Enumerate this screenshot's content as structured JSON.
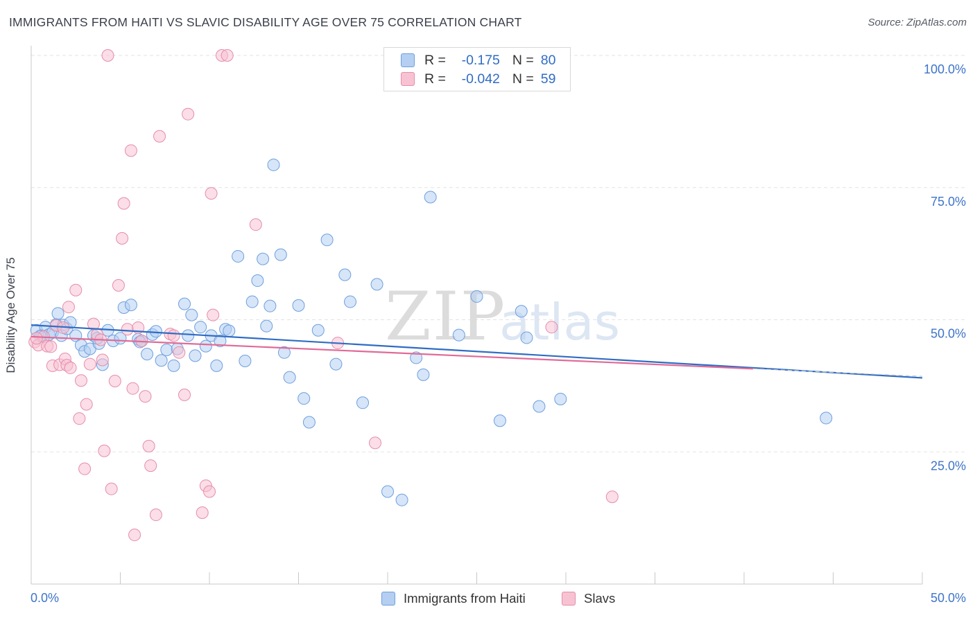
{
  "title": "IMMIGRANTS FROM HAITI VS SLAVIC DISABILITY AGE OVER 75 CORRELATION CHART",
  "source": "Source: ZipAtlas.com",
  "watermark": {
    "zip": "ZIP",
    "atlas": "atlas"
  },
  "legend": {
    "r_label": "R =",
    "n_label": "N =",
    "items": [
      {
        "r": "-0.175",
        "n": "80",
        "color": "#6d9fde"
      },
      {
        "r": "-0.042",
        "n": "59",
        "color": "#e68daa"
      }
    ]
  },
  "colors": {
    "blue_fill": "#b5cff2",
    "blue_stroke": "#6d9fde",
    "blue_line": "#2f6cc4",
    "pink_fill": "#f7c3d3",
    "pink_stroke": "#e68daa",
    "pink_line": "#e06a97",
    "tick_label": "#3d74c8",
    "grid": "#e3e3e3"
  },
  "chart_data": {
    "type": "scatter",
    "title": "IMMIGRANTS FROM HAITI VS SLAVIC DISABILITY AGE OVER 75 CORRELATION CHART",
    "xlabel": "",
    "ylabel": "Disability Age Over 75",
    "xlim": [
      0,
      50
    ],
    "ylim": [
      0,
      100
    ],
    "x_tick_labels": [
      "0.0%",
      "50.0%"
    ],
    "y_tick_labels": [
      "25.0%",
      "50.0%",
      "75.0%",
      "100.0%"
    ],
    "y_ticks": [
      25,
      50,
      75,
      100
    ],
    "grid": "horizontal dashed",
    "legend_position": "top-center",
    "series": [
      {
        "name": "Immigrants from Haiti",
        "trend": {
          "x": [
            0,
            50
          ],
          "y": [
            49.0,
            39.0
          ]
        },
        "points": [
          [
            0.3,
            48.0
          ],
          [
            0.6,
            47.0
          ],
          [
            0.8,
            48.6
          ],
          [
            1.0,
            47.2
          ],
          [
            1.2,
            47.6
          ],
          [
            1.4,
            49.1
          ],
          [
            1.5,
            51.2
          ],
          [
            1.7,
            47.0
          ],
          [
            1.8,
            49.0
          ],
          [
            2.0,
            48.3
          ],
          [
            2.2,
            49.5
          ],
          [
            2.5,
            47.0
          ],
          [
            2.8,
            45.2
          ],
          [
            3.0,
            44.0
          ],
          [
            3.3,
            44.5
          ],
          [
            3.5,
            47.0
          ],
          [
            3.8,
            45.5
          ],
          [
            4.0,
            41.5
          ],
          [
            4.3,
            48.0
          ],
          [
            4.6,
            46.0
          ],
          [
            5.0,
            46.5
          ],
          [
            5.2,
            52.3
          ],
          [
            5.6,
            52.8
          ],
          [
            6.0,
            46.3
          ],
          [
            6.2,
            46.0
          ],
          [
            6.5,
            43.5
          ],
          [
            6.8,
            47.2
          ],
          [
            7.0,
            47.8
          ],
          [
            7.3,
            42.3
          ],
          [
            7.6,
            44.3
          ],
          [
            8.0,
            41.3
          ],
          [
            8.2,
            44.5
          ],
          [
            8.6,
            53.0
          ],
          [
            8.8,
            47.0
          ],
          [
            9.0,
            50.9
          ],
          [
            9.2,
            43.2
          ],
          [
            9.5,
            48.6
          ],
          [
            9.8,
            45.0
          ],
          [
            10.1,
            47.0
          ],
          [
            10.4,
            41.3
          ],
          [
            10.6,
            46.0
          ],
          [
            10.9,
            48.2
          ],
          [
            11.1,
            47.9
          ],
          [
            11.6,
            62.0
          ],
          [
            12.0,
            42.2
          ],
          [
            12.4,
            53.4
          ],
          [
            12.7,
            57.4
          ],
          [
            13.0,
            61.5
          ],
          [
            13.2,
            48.8
          ],
          [
            13.4,
            52.6
          ],
          [
            13.6,
            79.3
          ],
          [
            14.0,
            62.3
          ],
          [
            14.2,
            43.8
          ],
          [
            14.5,
            39.1
          ],
          [
            15.0,
            52.7
          ],
          [
            15.3,
            35.1
          ],
          [
            15.6,
            30.6
          ],
          [
            16.1,
            48.0
          ],
          [
            16.6,
            65.1
          ],
          [
            17.1,
            41.6
          ],
          [
            17.6,
            58.5
          ],
          [
            17.9,
            53.4
          ],
          [
            18.6,
            34.3
          ],
          [
            19.4,
            56.7
          ],
          [
            20.0,
            17.5
          ],
          [
            20.8,
            15.9
          ],
          [
            21.6,
            42.8
          ],
          [
            22.0,
            39.6
          ],
          [
            22.4,
            73.2
          ],
          [
            24.0,
            47.1
          ],
          [
            25.0,
            54.4
          ],
          [
            26.3,
            30.9
          ],
          [
            27.5,
            51.6
          ],
          [
            27.8,
            46.6
          ],
          [
            28.5,
            33.6
          ],
          [
            29.7,
            35.0
          ],
          [
            44.6,
            31.4
          ],
          [
            0.5,
            46.9
          ],
          [
            6.1,
            45.8
          ],
          [
            3.7,
            46.5
          ]
        ]
      },
      {
        "name": "Slavs",
        "trend": {
          "x": [
            0,
            50
          ],
          "y": [
            46.8,
            39.3
          ]
        },
        "points": [
          [
            0.2,
            45.8
          ],
          [
            0.4,
            45.2
          ],
          [
            0.7,
            46.8
          ],
          [
            0.9,
            45.0
          ],
          [
            1.1,
            44.9
          ],
          [
            1.2,
            41.3
          ],
          [
            1.4,
            48.9
          ],
          [
            1.6,
            41.5
          ],
          [
            1.8,
            48.5
          ],
          [
            1.9,
            42.6
          ],
          [
            2.0,
            41.4
          ],
          [
            2.1,
            52.4
          ],
          [
            2.2,
            40.9
          ],
          [
            2.5,
            55.6
          ],
          [
            2.7,
            31.3
          ],
          [
            2.8,
            38.5
          ],
          [
            3.0,
            21.8
          ],
          [
            3.1,
            34.0
          ],
          [
            3.3,
            41.6
          ],
          [
            3.5,
            49.2
          ],
          [
            3.7,
            47.2
          ],
          [
            3.9,
            46.2
          ],
          [
            4.0,
            42.4
          ],
          [
            4.1,
            25.2
          ],
          [
            4.3,
            100.0
          ],
          [
            4.5,
            18.0
          ],
          [
            4.7,
            38.4
          ],
          [
            4.9,
            56.5
          ],
          [
            5.1,
            65.4
          ],
          [
            5.2,
            72.0
          ],
          [
            5.4,
            48.2
          ],
          [
            5.6,
            82.0
          ],
          [
            5.7,
            37.0
          ],
          [
            5.8,
            9.3
          ],
          [
            6.0,
            48.5
          ],
          [
            6.2,
            46.0
          ],
          [
            6.4,
            35.5
          ],
          [
            6.6,
            26.1
          ],
          [
            6.7,
            22.4
          ],
          [
            7.0,
            13.1
          ],
          [
            7.2,
            84.7
          ],
          [
            7.8,
            47.3
          ],
          [
            8.3,
            43.8
          ],
          [
            8.6,
            35.8
          ],
          [
            8.8,
            88.9
          ],
          [
            9.6,
            13.5
          ],
          [
            9.8,
            18.6
          ],
          [
            10.0,
            17.5
          ],
          [
            10.1,
            73.9
          ],
          [
            10.2,
            50.9
          ],
          [
            10.7,
            100.0
          ],
          [
            11.0,
            100.0
          ],
          [
            12.6,
            68.0
          ],
          [
            17.2,
            45.6
          ],
          [
            19.3,
            26.7
          ],
          [
            29.2,
            48.6
          ],
          [
            32.6,
            16.5
          ],
          [
            0.3,
            46.5
          ],
          [
            8.0,
            47.0
          ]
        ]
      }
    ]
  }
}
